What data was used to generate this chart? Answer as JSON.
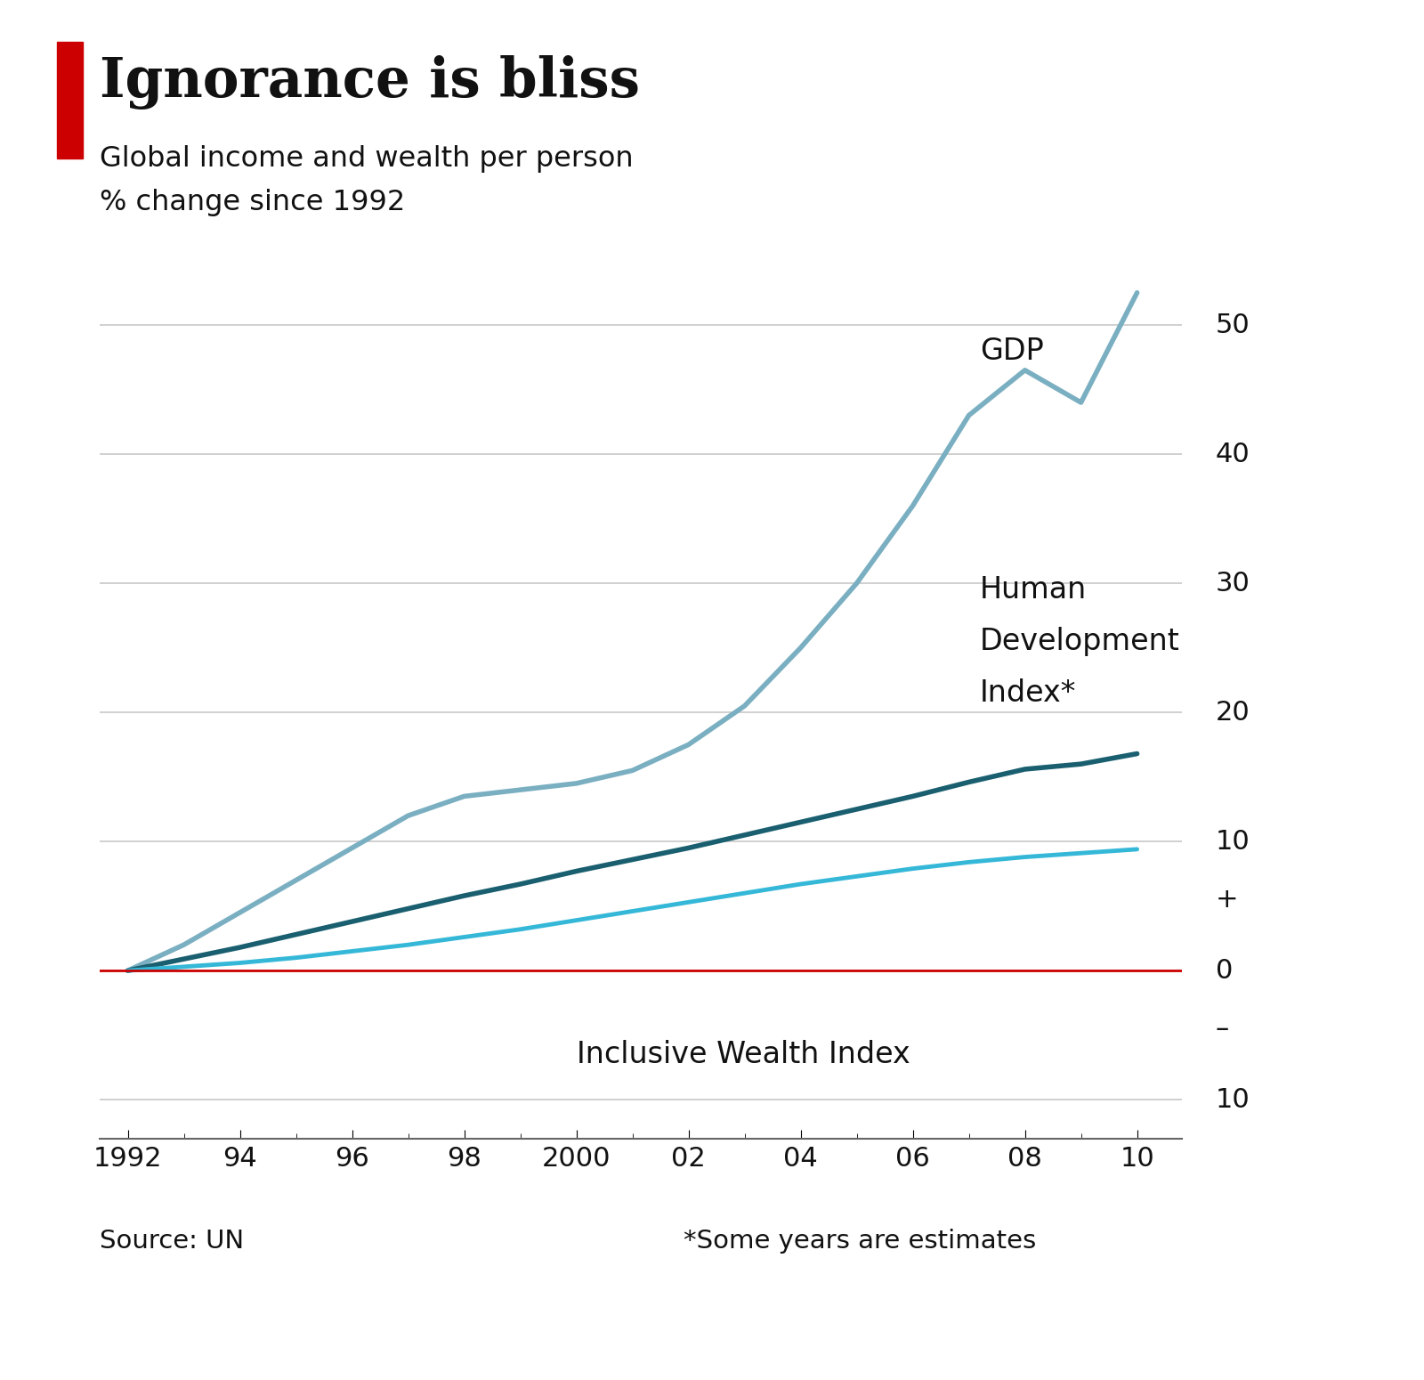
{
  "title": "Ignorance is bliss",
  "subtitle1": "Global income and wealth per person",
  "subtitle2": "% change since 1992",
  "source": "Source: UN",
  "footnote": "*Some years are estimates",
  "background_color": "#ffffff",
  "red_accent_color": "#cc0000",
  "gdp_color": "#7aafc2",
  "hdi_color": "#1a5f70",
  "iwi_color": "#35b8d8",
  "zero_line_color": "#cc0000",
  "grid_color": "#c8c8c8",
  "years": [
    1992,
    1993,
    1994,
    1995,
    1996,
    1997,
    1998,
    1999,
    2000,
    2001,
    2002,
    2003,
    2004,
    2005,
    2006,
    2007,
    2008,
    2009,
    2010
  ],
  "gdp": [
    0,
    2.0,
    4.5,
    7.0,
    9.5,
    12.0,
    13.5,
    14.0,
    14.5,
    15.5,
    17.5,
    20.5,
    25.0,
    30.0,
    36.0,
    43.0,
    46.5,
    44.0,
    52.5
  ],
  "hdi": [
    0,
    0.9,
    1.8,
    2.8,
    3.8,
    4.8,
    5.8,
    6.7,
    7.7,
    8.6,
    9.5,
    10.5,
    11.5,
    12.5,
    13.5,
    14.6,
    15.6,
    16.0,
    16.8
  ],
  "iwi": [
    0,
    0.3,
    0.6,
    1.0,
    1.5,
    2.0,
    2.6,
    3.2,
    3.9,
    4.6,
    5.3,
    6.0,
    6.7,
    7.3,
    7.9,
    8.4,
    8.8,
    9.1,
    9.4
  ],
  "ylim": [
    -13,
    57
  ],
  "xlim": [
    1991.5,
    2010.8
  ],
  "yticks": [
    -10,
    0,
    10,
    20,
    30,
    40,
    50
  ],
  "xtick_labels": [
    "1992",
    "94",
    "96",
    "98",
    "2000",
    "02",
    "04",
    "06",
    "08",
    "10"
  ],
  "xtick_positions": [
    1992,
    1994,
    1996,
    1998,
    2000,
    2002,
    2004,
    2006,
    2008,
    2010
  ]
}
